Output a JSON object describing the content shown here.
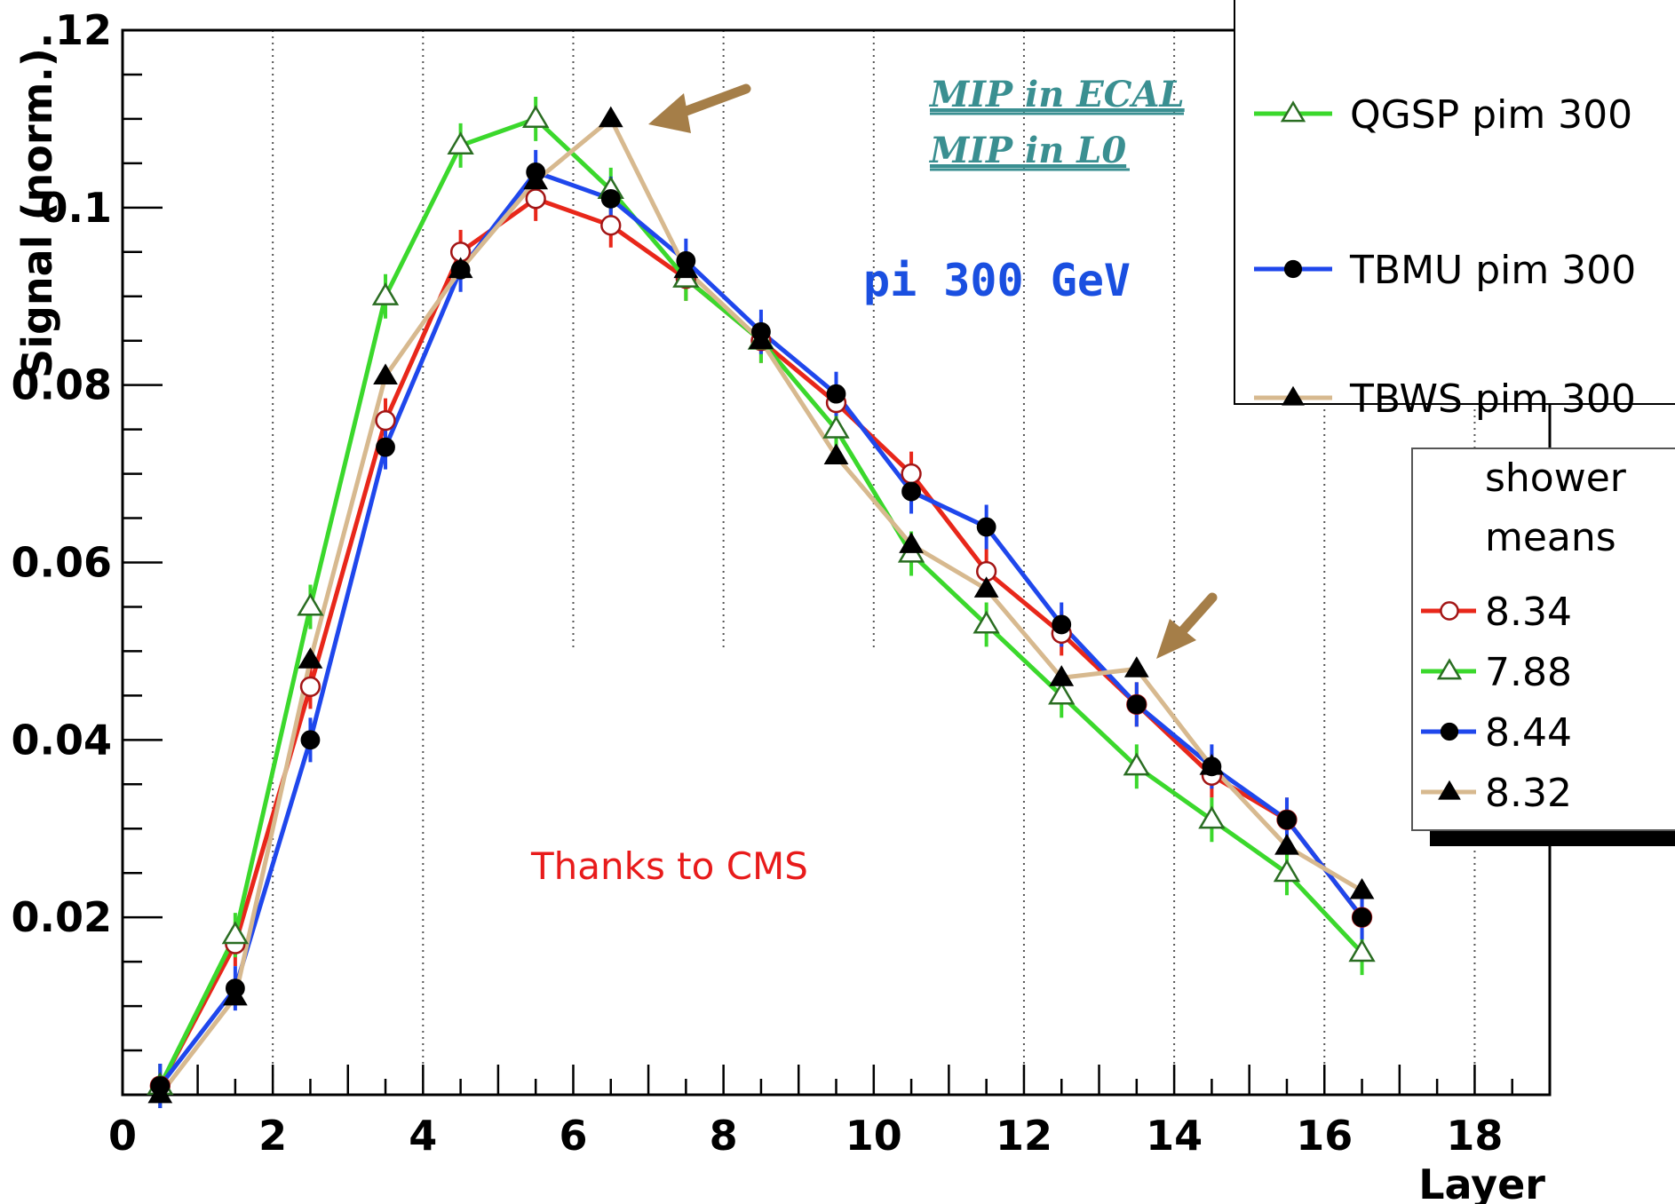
{
  "chart_data": {
    "type": "line",
    "title": "",
    "xlabel": "Layer",
    "ylabel": "Signal (norm.)",
    "xlim": [
      0,
      19
    ],
    "ylim": [
      0,
      0.12
    ],
    "x_ticks": [
      "0",
      "2",
      "4",
      "6",
      "8",
      "10",
      "12",
      "14",
      "16",
      "18"
    ],
    "y_ticks": [
      "0.02",
      "0.04",
      "0.06",
      "0.08",
      "0.1",
      "0.12"
    ],
    "y_top_tick_label": ".12",
    "grid_x": [
      2,
      4,
      6,
      8,
      10,
      12,
      14,
      16,
      18
    ],
    "x": [
      0.5,
      1.5,
      2.5,
      3.5,
      4.5,
      5.5,
      6.5,
      7.5,
      8.5,
      9.5,
      10.5,
      11.5,
      12.5,
      13.5,
      14.5,
      15.5,
      16.5
    ],
    "series": [
      {
        "color": "#e8271a",
        "marker": "open-circle",
        "values": [
          0.001,
          0.017,
          0.046,
          0.076,
          0.095,
          0.101,
          0.098,
          0.092,
          0.085,
          0.078,
          0.07,
          0.059,
          0.052,
          0.044,
          0.036,
          0.031,
          0.02
        ]
      },
      {
        "name": "QGSP pim 300",
        "color": "#3bd82c",
        "marker": "open-triangle",
        "values": [
          0.001,
          0.018,
          0.055,
          0.09,
          0.107,
          0.11,
          0.102,
          0.092,
          0.085,
          0.075,
          0.061,
          0.053,
          0.045,
          0.037,
          0.031,
          0.025,
          0.016
        ]
      },
      {
        "name": "TBMU pim 300",
        "color": "#1f47ec",
        "marker": "filled-circle",
        "values": [
          0.001,
          0.012,
          0.04,
          0.073,
          0.093,
          0.104,
          0.101,
          0.094,
          0.086,
          0.079,
          0.068,
          0.064,
          0.053,
          0.044,
          0.037,
          0.031,
          0.02
        ]
      },
      {
        "name": "TBWS pim 300",
        "color": "#d7b98f",
        "marker": "filled-triangle",
        "values": [
          0.0,
          0.011,
          0.049,
          0.081,
          0.093,
          0.103,
          0.11,
          0.093,
          0.085,
          0.072,
          0.062,
          0.057,
          0.047,
          0.048,
          0.037,
          0.028,
          0.023
        ]
      }
    ],
    "error_bar": 0.0025
  },
  "models_legend": {
    "entries": [
      {
        "label": "QGSP pim 300",
        "color": "#3bd82c",
        "marker": "open-triangle"
      },
      {
        "label": "TBMU pim 300",
        "color": "#1f47ec",
        "marker": "filled-circle"
      },
      {
        "label": "TBWS pim 300",
        "color": "#d7b98f",
        "marker": "filled-triangle"
      }
    ]
  },
  "means_legend": {
    "title_line1": "shower",
    "title_line2": "means",
    "entries": [
      {
        "label": "8.34",
        "color": "#e8271a",
        "marker": "open-circle"
      },
      {
        "label": "7.88",
        "color": "#3bd82c",
        "marker": "open-triangle"
      },
      {
        "label": "8.44",
        "color": "#1f47ec",
        "marker": "filled-circle"
      },
      {
        "label": "8.32",
        "color": "#d7b98f",
        "marker": "filled-triangle"
      }
    ]
  },
  "annotations": {
    "mip_ecal": "MIP in ECAL",
    "mip_l0": "MIP in L0",
    "beam": "pi 300 GeV",
    "thanks": "Thanks to CMS"
  },
  "colors": {
    "arrow": "#a57e48",
    "annotation_teal": "#3a8f91"
  }
}
